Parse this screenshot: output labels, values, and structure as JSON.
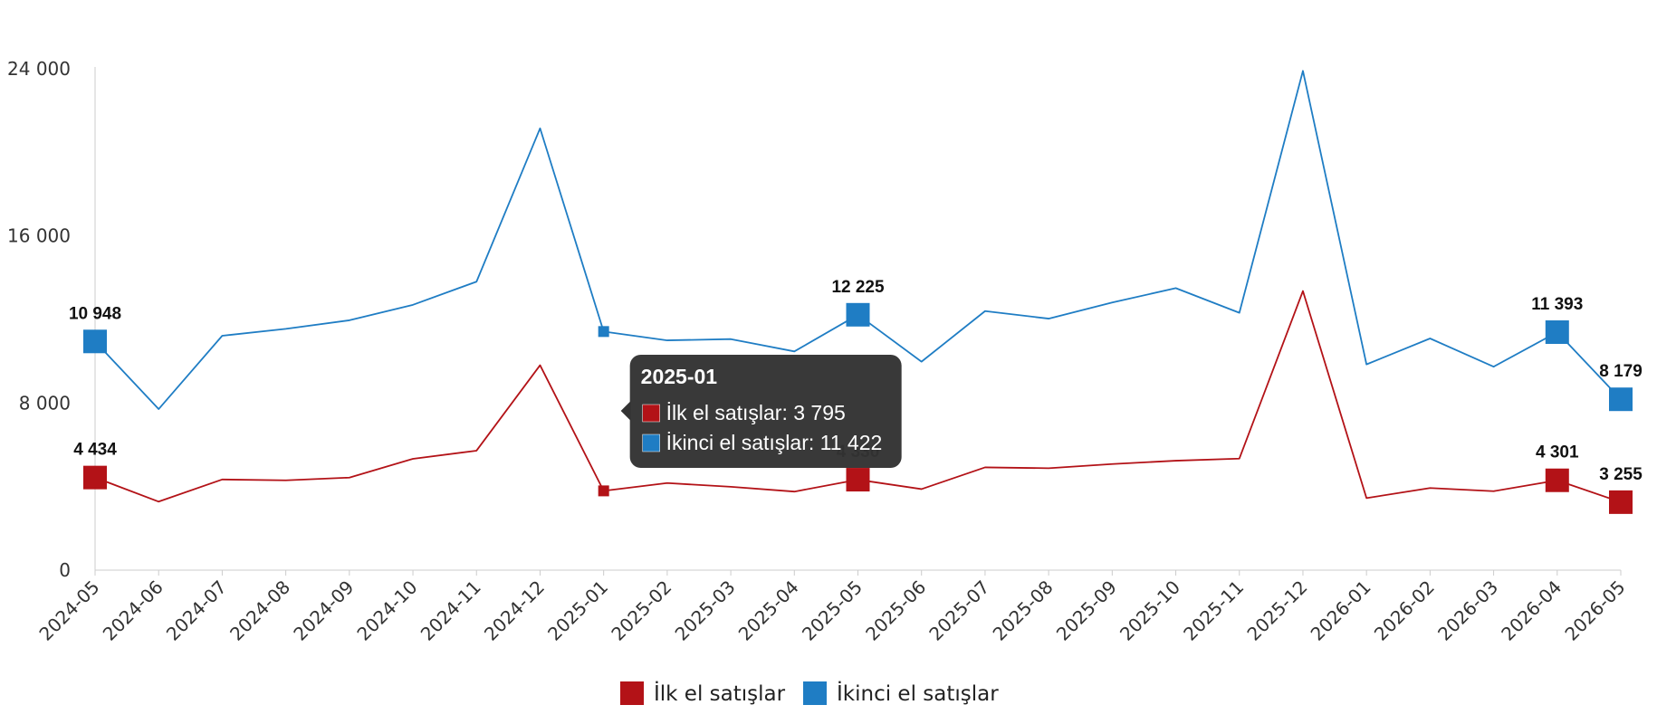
{
  "chart_data": {
    "type": "line",
    "title": "",
    "xlabel": "",
    "ylabel": "",
    "ylim": [
      0,
      24000
    ],
    "yticks": [
      0,
      8000,
      16000,
      24000
    ],
    "ytick_labels": [
      "0",
      "8 000",
      "16 000",
      "24 000"
    ],
    "grid": false,
    "legend_position": "bottom-center",
    "categories": [
      "2024-05",
      "2024-06",
      "2024-07",
      "2024-08",
      "2024-09",
      "2024-10",
      "2024-11",
      "2024-12",
      "2025-01",
      "2025-02",
      "2025-03",
      "2025-04",
      "2025-05",
      "2025-06",
      "2025-07",
      "2025-08",
      "2025-09",
      "2025-10",
      "2025-11",
      "2025-12",
      "2026-01",
      "2026-02",
      "2026-03",
      "2026-04",
      "2026-05"
    ],
    "series": [
      {
        "name": "İlk el satışlar",
        "color": "#b31217",
        "values": [
          4434,
          3280,
          4340,
          4300,
          4430,
          5330,
          5720,
          9810,
          3795,
          4170,
          3990,
          3760,
          4330,
          3880,
          4920,
          4880,
          5080,
          5240,
          5340,
          13360,
          3450,
          3930,
          3780,
          4301,
          3255
        ],
        "labels": {
          "0": "4 434",
          "12": "4 330",
          "23": "4 301",
          "24": "3 255"
        }
      },
      {
        "name": "İkinci el satışlar",
        "color": "#1f7dc4",
        "values": [
          10948,
          7710,
          11220,
          11550,
          11960,
          12700,
          13810,
          21150,
          11422,
          11000,
          11060,
          10470,
          12225,
          9980,
          12400,
          12040,
          12810,
          13500,
          12320,
          23900,
          9850,
          11090,
          9740,
          11393,
          8179
        ],
        "labels": {
          "0": "10 948",
          "12": "12 225",
          "23": "11 393",
          "24": "8 179"
        }
      }
    ],
    "tooltip": {
      "title": "2025-01",
      "lines": [
        "İlk el satışlar: 3 795",
        "İkinci el satışlar: 11 422"
      ],
      "anchor_index": 8
    }
  }
}
